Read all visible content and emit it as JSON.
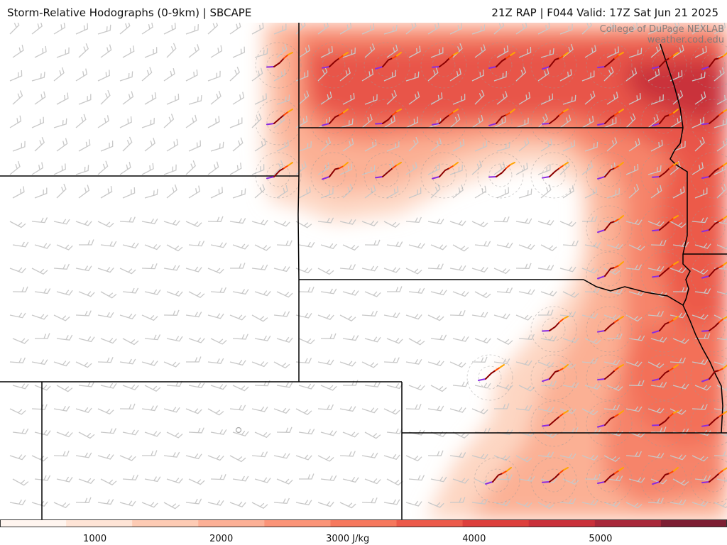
{
  "header": {
    "title_left": "Storm-Relative Hodographs (0-9km) | SBCAPE",
    "title_right": "21Z RAP | F044 Valid: 17Z Sat Jun 21 2025"
  },
  "credit": {
    "line1": "College of DuPage NEXLAB",
    "line2": "weather.cod.edu"
  },
  "colorbar": {
    "unit": "J/kg",
    "ticks": [
      {
        "value": 1000,
        "label": "1000"
      },
      {
        "value": 2000,
        "label": "2000"
      },
      {
        "value": 3000,
        "label": "3000 J/kg"
      },
      {
        "value": 4000,
        "label": "4000"
      },
      {
        "value": 5000,
        "label": "5000"
      }
    ],
    "range": [
      250,
      6000
    ],
    "colors": [
      "#fff5ef",
      "#fee4d6",
      "#fdcbb4",
      "#fcb096",
      "#fb9478",
      "#f6785d",
      "#ec5a4a",
      "#dd3f3c",
      "#c9303a",
      "#a8283a",
      "#7d1f33"
    ]
  },
  "map": {
    "hodograph_colors": {
      "layer_0_3km": "#8b0000",
      "layer_3_6km": "#ff4500",
      "layer_6_9km": "#ffa500",
      "layer_9km_top": "#8a2be2"
    },
    "barb_color": "#c8c8c8",
    "state_border_color": "#000000"
  }
}
